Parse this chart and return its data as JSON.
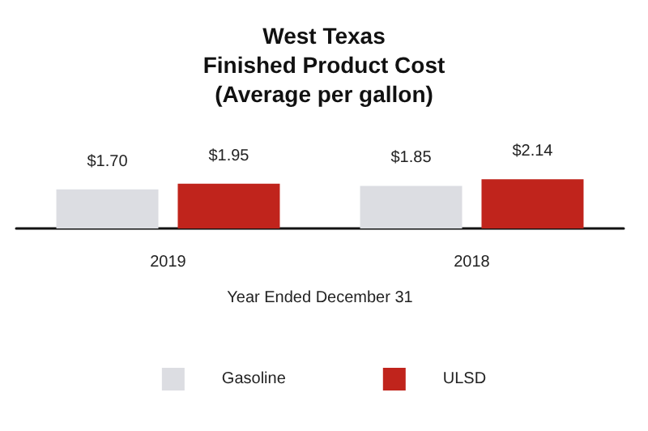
{
  "chart_data": {
    "type": "bar",
    "title": "West Texas\nFinished Product Cost\n(Average per gallon)",
    "xlabel": "Year Ended December 31",
    "categories": [
      "2019",
      "2018"
    ],
    "series": [
      {
        "name": "Gasoline",
        "color": "#dcdde2",
        "values": [
          1.7,
          1.85
        ],
        "value_labels": [
          "$1.70",
          "$1.85"
        ]
      },
      {
        "name": "ULSD",
        "color": "#c0241c",
        "values": [
          1.95,
          2.14
        ],
        "value_labels": [
          "$1.95",
          "$2.14"
        ]
      }
    ],
    "legend": "bottom"
  }
}
